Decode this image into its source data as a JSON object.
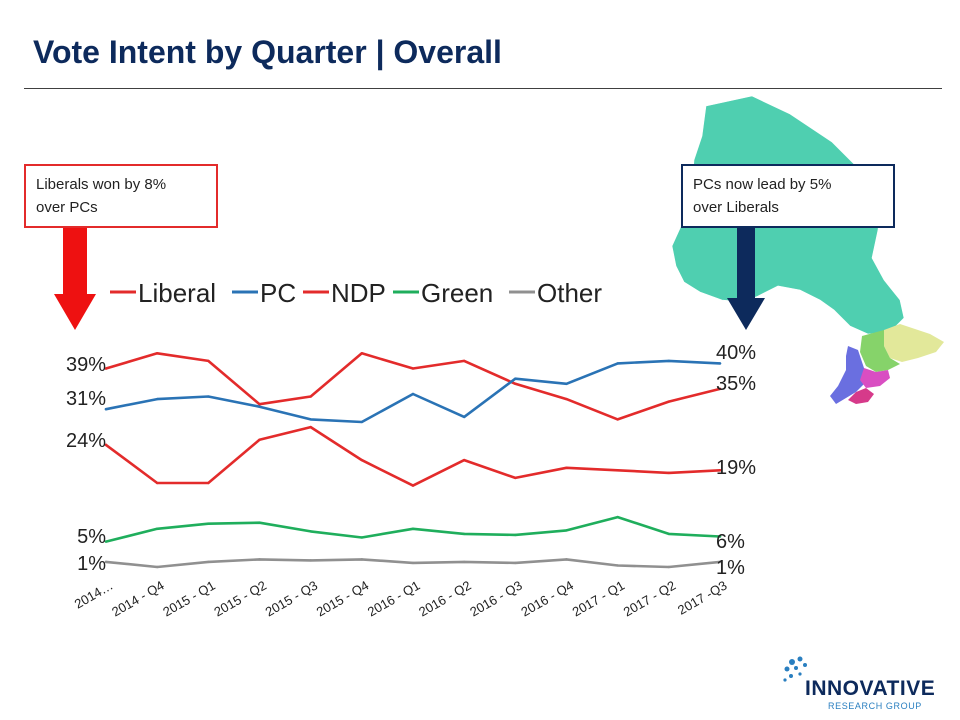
{
  "title": "Vote Intent by Quarter | Overall",
  "callouts": {
    "left": {
      "line1": "Liberals won by 8%",
      "line2": "over PCs"
    },
    "right": {
      "line1": "PCs now lead by 5%",
      "line2": "over Liberals"
    }
  },
  "colors": {
    "title": "#0d2a5c",
    "liberal": "#e32b2b",
    "pc": "#2a73b5",
    "ndp": "#e32b2b",
    "green": "#1fae5c",
    "other": "#909090",
    "arrow_left": "#ee1111",
    "arrow_right": "#0d2a5c"
  },
  "map": {
    "region": "Ontario"
  },
  "logo": {
    "name": "INNOVATIVE",
    "subtitle": "RESEARCH GROUP"
  },
  "chart_data": {
    "type": "line",
    "title": "",
    "xlabel": "",
    "ylabel": "",
    "categories": [
      "2014…",
      "2014 - Q4",
      "2015 - Q1",
      "2015 - Q2",
      "2015 - Q3",
      "2015 - Q4",
      "2016 - Q1",
      "2016 - Q2",
      "2016 - Q3",
      "2016 - Q4",
      "2017 - Q1",
      "2017 - Q2",
      "2017 -Q3"
    ],
    "ylim": [
      0,
      45
    ],
    "legend_position": "top",
    "grid": false,
    "series": [
      {
        "name": "Liberal",
        "color": "#e32b2b",
        "values": [
          39,
          42,
          40.5,
          32,
          33.5,
          42,
          39,
          40.5,
          36,
          33,
          29,
          32.5,
          35
        ]
      },
      {
        "name": "PC",
        "color": "#2a73b5",
        "values": [
          31,
          33,
          33.5,
          31.5,
          29,
          28.5,
          34,
          29.5,
          37,
          36,
          40,
          40.5,
          40
        ]
      },
      {
        "name": "NDP",
        "color": "#e32b2b",
        "values": [
          24,
          16.5,
          16.5,
          25,
          27.5,
          21,
          16,
          21,
          17.5,
          19.5,
          19,
          18.5,
          19
        ]
      },
      {
        "name": "Green",
        "color": "#1fae5c",
        "values": [
          5,
          7.5,
          8.5,
          8.7,
          7,
          5.8,
          7.5,
          6.5,
          6.3,
          7.2,
          9.8,
          6.5,
          6
        ]
      },
      {
        "name": "Other",
        "color": "#909090",
        "values": [
          1,
          0,
          1,
          1.5,
          1.3,
          1.5,
          0.8,
          1,
          0.8,
          1.5,
          0.3,
          0,
          1
        ]
      }
    ],
    "start_labels": [
      {
        "series": "Liberal",
        "text": "39%"
      },
      {
        "series": "PC",
        "text": "31%"
      },
      {
        "series": "NDP",
        "text": "24%"
      },
      {
        "series": "Green",
        "text": "5%"
      },
      {
        "series": "Other",
        "text": "1%"
      }
    ],
    "end_labels": [
      {
        "series": "PC",
        "text": "40%"
      },
      {
        "series": "Liberal",
        "text": "35%"
      },
      {
        "series": "NDP",
        "text": "19%"
      },
      {
        "series": "Green",
        "text": "6%"
      },
      {
        "series": "Other",
        "text": "1%"
      }
    ]
  }
}
